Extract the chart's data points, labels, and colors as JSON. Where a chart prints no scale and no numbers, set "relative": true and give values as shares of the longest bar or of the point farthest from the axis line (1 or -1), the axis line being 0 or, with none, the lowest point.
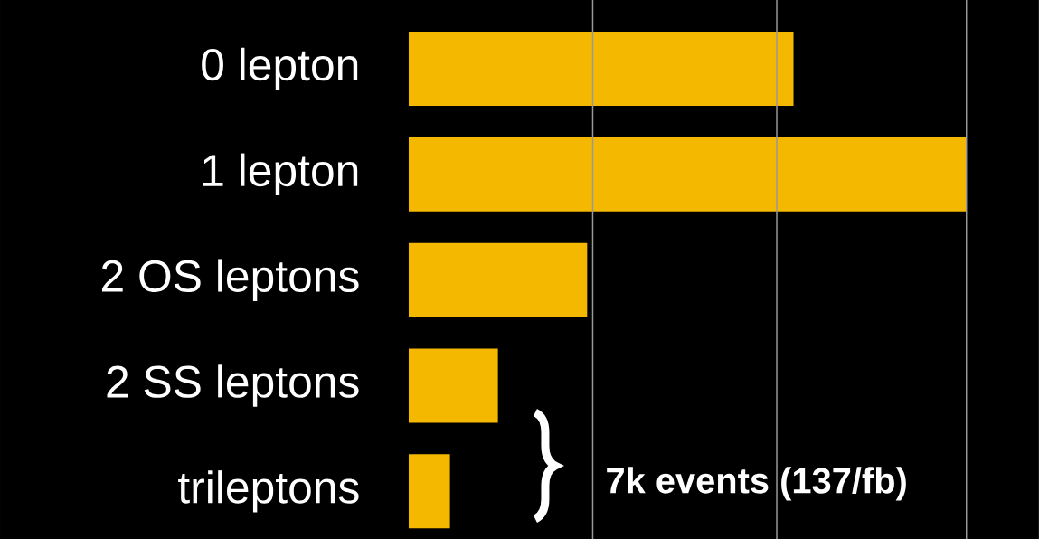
{
  "chart_data": {
    "type": "bar",
    "orientation": "horizontal",
    "relative": true,
    "ref_lines": [
      {
        "axis": "x",
        "value": 0.33,
        "color": "#999999"
      },
      {
        "axis": "x",
        "value": 0.66,
        "color": "#999999"
      },
      {
        "axis": "x",
        "value": 1,
        "color": "#999999"
      }
    ],
    "color": "#f5b800",
    "categories": [
      "0 lepton",
      "1 lepton",
      "2 OS leptons",
      "2 SS leptons",
      "trileptons"
    ],
    "values": [
      0.69,
      1,
      0.32,
      0.16,
      0.074
    ],
    "annotations": [
      "7k events (137/fb)"
    ]
  }
}
